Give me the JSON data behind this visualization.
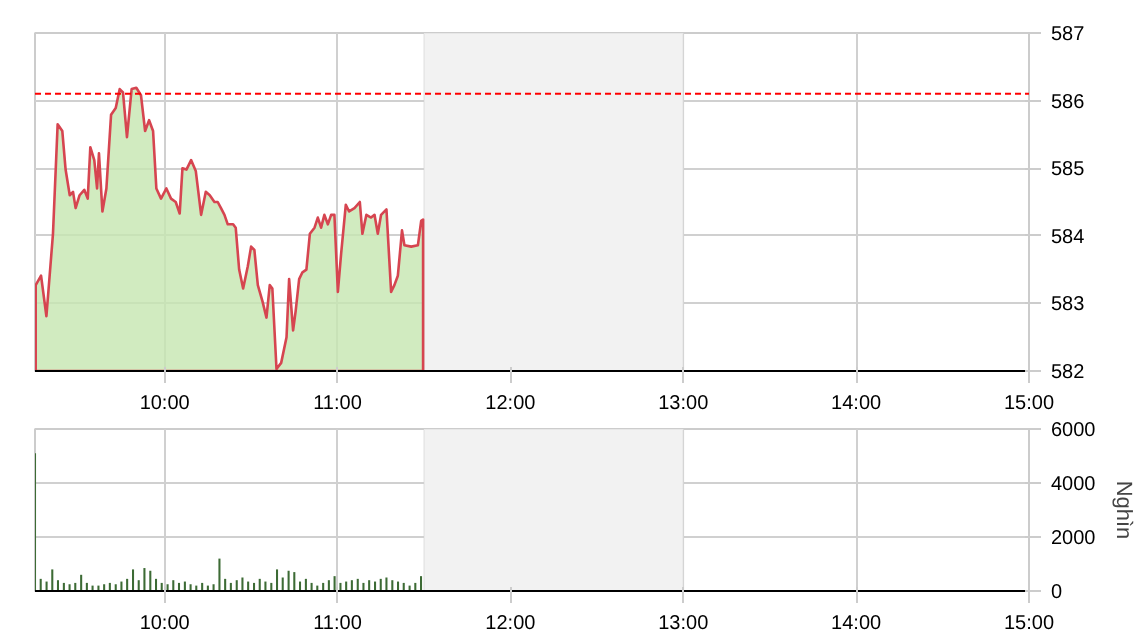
{
  "chart_data": [
    {
      "type": "area",
      "xlim": [
        9.25,
        15
      ],
      "ylim": [
        582,
        587
      ],
      "yticks": [
        582,
        583,
        584,
        585,
        586,
        587
      ],
      "xticks": [
        {
          "value": 10,
          "label": "10:00"
        },
        {
          "value": 11,
          "label": "11:00"
        },
        {
          "value": 12,
          "label": "12:00"
        },
        {
          "value": 13,
          "label": "13:00"
        },
        {
          "value": 14,
          "label": "14:00"
        },
        {
          "value": 15,
          "label": "15:00"
        }
      ],
      "grid": true,
      "ref_lines": [
        {
          "axis": "y",
          "value": 586.1,
          "color": "#ff0000",
          "line_style": "dashed"
        }
      ],
      "bands": [
        {
          "axis": "x",
          "from": 11.5,
          "to": 13,
          "color": "#f2f2f2"
        }
      ],
      "series": [
        {
          "color": "#d64550",
          "x": [
            9.254,
            9.285,
            9.316,
            9.354,
            9.381,
            9.408,
            9.427,
            9.451,
            9.47,
            9.485,
            9.508,
            9.535,
            9.555,
            9.57,
            9.593,
            9.609,
            9.62,
            9.64,
            9.663,
            9.69,
            9.717,
            9.74,
            9.759,
            9.782,
            9.809,
            9.836,
            9.863,
            9.887,
            9.91,
            9.933,
            9.952,
            9.979,
            10.01,
            10.037,
            10.064,
            10.087,
            10.103,
            10.126,
            10.153,
            10.18,
            10.211,
            10.238,
            10.261,
            10.288,
            10.307,
            10.326,
            10.346,
            10.365,
            10.396,
            10.411,
            10.431,
            10.454,
            10.481,
            10.5,
            10.519,
            10.539,
            10.566,
            10.589,
            10.608,
            10.623,
            10.647,
            10.674,
            10.705,
            10.72,
            10.743,
            10.758,
            10.778,
            10.797,
            10.82,
            10.84,
            10.867,
            10.886,
            10.905,
            10.924,
            10.944,
            10.963,
            10.982,
            11.002,
            11.021,
            11.048,
            11.067,
            11.098,
            11.129,
            11.144,
            11.167,
            11.194,
            11.214,
            11.233,
            11.252,
            11.283,
            11.31,
            11.329,
            11.349,
            11.373,
            11.387,
            11.426,
            11.465,
            11.484,
            11.495
          ],
          "values": [
            583.27,
            583.41,
            582.81,
            584.03,
            585.65,
            585.55,
            584.98,
            584.6,
            584.65,
            584.41,
            584.6,
            584.68,
            584.55,
            585.31,
            585.12,
            584.7,
            585.22,
            584.36,
            584.7,
            585.79,
            585.89,
            586.17,
            586.12,
            585.46,
            586.17,
            586.19,
            586.08,
            585.55,
            585.71,
            585.55,
            584.7,
            584.55,
            584.7,
            584.55,
            584.5,
            584.33,
            585.0,
            584.98,
            585.12,
            584.96,
            584.31,
            584.65,
            584.6,
            584.5,
            584.5,
            584.41,
            584.31,
            584.17,
            584.17,
            584.12,
            583.5,
            583.22,
            583.55,
            583.84,
            583.79,
            583.27,
            583.03,
            582.79,
            583.27,
            583.22,
            582.03,
            582.12,
            582.5,
            583.36,
            582.6,
            582.89,
            583.36,
            583.46,
            583.5,
            584.03,
            584.12,
            584.27,
            584.12,
            584.31,
            584.17,
            584.31,
            584.31,
            583.17,
            583.74,
            584.46,
            584.36,
            584.41,
            584.5,
            584.03,
            584.31,
            584.27,
            584.31,
            584.03,
            584.31,
            584.39,
            583.17,
            583.27,
            583.41,
            584.08,
            583.86,
            583.84,
            583.86,
            584.22,
            584.24
          ]
        }
      ]
    },
    {
      "type": "bar",
      "xlim": [
        9.25,
        15
      ],
      "ylim": [
        0,
        6000
      ],
      "yticks": [
        0,
        2000,
        4000,
        6000
      ],
      "ylabel": "Nghìn",
      "xticks": [
        {
          "value": 10,
          "label": "10:00"
        },
        {
          "value": 11,
          "label": "11:00"
        },
        {
          "value": 12,
          "label": "12:00"
        },
        {
          "value": 13,
          "label": "13:00"
        },
        {
          "value": 14,
          "label": "14:00"
        },
        {
          "value": 15,
          "label": "15:00"
        }
      ],
      "grid": true,
      "bands": [
        {
          "axis": "x",
          "from": 11.5,
          "to": 13,
          "color": "#f2f2f2"
        }
      ],
      "series": [
        {
          "color": "#3d6b35",
          "x": [
            9.25,
            9.283,
            9.317,
            9.35,
            9.383,
            9.417,
            9.45,
            9.483,
            9.517,
            9.55,
            9.583,
            9.617,
            9.65,
            9.683,
            9.717,
            9.75,
            9.783,
            9.817,
            9.85,
            9.883,
            9.917,
            9.95,
            9.983,
            10.017,
            10.05,
            10.083,
            10.117,
            10.15,
            10.183,
            10.217,
            10.25,
            10.283,
            10.317,
            10.35,
            10.383,
            10.417,
            10.45,
            10.483,
            10.517,
            10.55,
            10.583,
            10.617,
            10.65,
            10.683,
            10.717,
            10.75,
            10.783,
            10.817,
            10.85,
            10.883,
            10.917,
            10.95,
            10.983,
            11.017,
            11.05,
            11.083,
            11.117,
            11.15,
            11.183,
            11.217,
            11.25,
            11.283,
            11.317,
            11.35,
            11.383,
            11.417,
            11.45,
            11.483
          ],
          "values": [
            5100,
            450,
            350,
            800,
            400,
            300,
            250,
            300,
            600,
            300,
            200,
            200,
            250,
            300,
            250,
            350,
            450,
            800,
            400,
            850,
            750,
            450,
            300,
            250,
            400,
            300,
            350,
            250,
            200,
            300,
            200,
            250,
            1200,
            450,
            300,
            400,
            500,
            350,
            300,
            450,
            350,
            300,
            800,
            500,
            750,
            700,
            350,
            450,
            300,
            200,
            300,
            400,
            550,
            300,
            350,
            400,
            450,
            300,
            400,
            350,
            450,
            500,
            400,
            350,
            300,
            200,
            300,
            550
          ]
        }
      ]
    }
  ]
}
